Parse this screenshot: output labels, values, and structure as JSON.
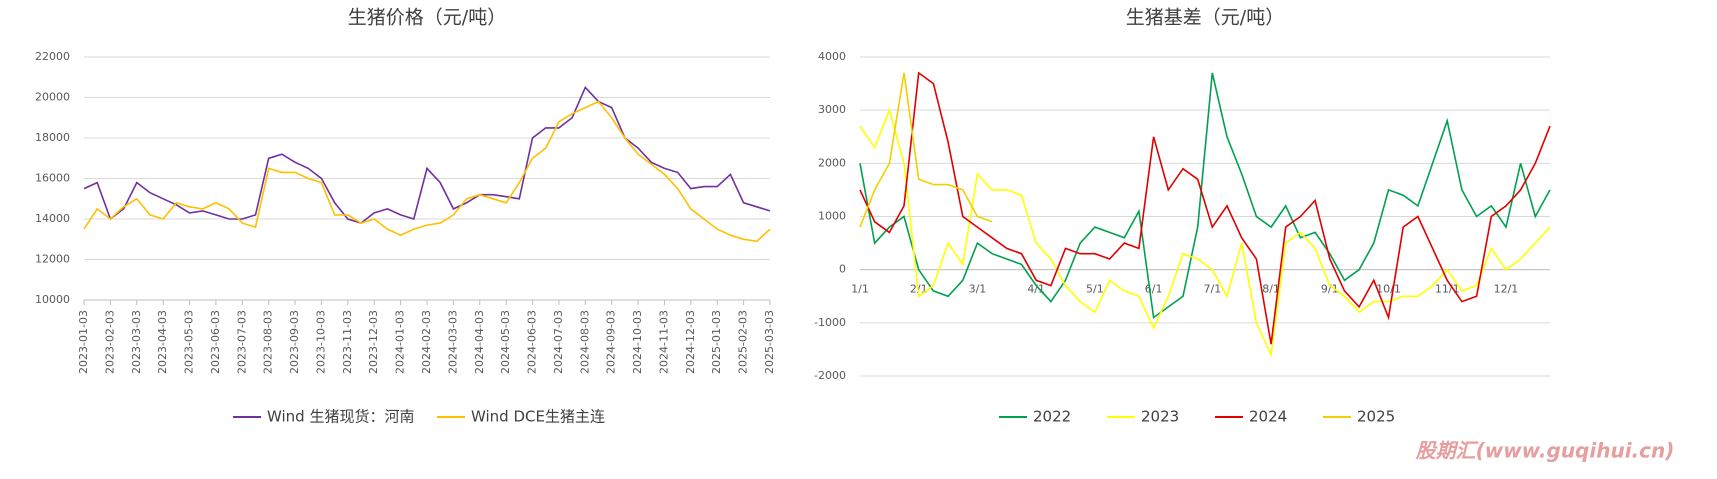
{
  "chart_data": [
    {
      "type": "line",
      "title": "生猪价格（元/吨）",
      "categories": [
        "2023-01-03",
        null,
        "2023-02-03",
        null,
        "2023-03-03",
        null,
        "2023-04-03",
        null,
        "2023-05-03",
        null,
        "2023-06-03",
        null,
        "2023-07-03",
        null,
        "2023-08-03",
        null,
        "2023-09-03",
        null,
        "2023-10-03",
        null,
        "2023-11-03",
        null,
        "2023-12-03",
        null,
        "2024-01-03",
        null,
        "2024-02-03",
        null,
        "2024-03-03",
        null,
        "2024-04-03",
        null,
        "2024-05-03",
        null,
        "2024-06-03",
        null,
        "2024-07-03",
        null,
        "2024-08-03",
        null,
        "2024-09-03",
        null,
        "2024-10-03",
        null,
        "2024-11-03",
        null,
        "2024-12-03",
        null,
        "2025-01-03",
        null,
        "2025-02-03",
        null,
        "2025-03-03"
      ],
      "series": [
        {
          "name": "Wind 生猪现货：河南",
          "color": "#7030a0",
          "values": [
            15500,
            15800,
            14000,
            14500,
            15800,
            15300,
            15000,
            14700,
            14300,
            14400,
            14200,
            14000,
            14000,
            14200,
            17000,
            17200,
            16800,
            16500,
            16000,
            14800,
            14000,
            13800,
            14300,
            14500,
            14200,
            14000,
            16500,
            15800,
            14500,
            14800,
            15200,
            15200,
            15100,
            15000,
            18000,
            18500,
            18500,
            19000,
            20500,
            19800,
            19500,
            18000,
            17500,
            16800,
            16500,
            16300,
            15500,
            15600,
            15600,
            16200,
            14800,
            14600,
            14400
          ]
        },
        {
          "name": "Wind DCE生猪主连",
          "color": "#ffc000",
          "values": [
            13500,
            14500,
            14000,
            14600,
            15000,
            14200,
            14000,
            14800,
            14600,
            14500,
            14800,
            14500,
            13800,
            13600,
            16500,
            16300,
            16300,
            16000,
            15800,
            14200,
            14200,
            13800,
            14000,
            13500,
            13200,
            13500,
            13700,
            13800,
            14200,
            15000,
            15200,
            15000,
            14800,
            15800,
            17000,
            17500,
            18800,
            19200,
            19500,
            19800,
            19000,
            18000,
            17200,
            16700,
            16200,
            15500,
            14500,
            14000,
            13500,
            13200,
            13000,
            12900,
            13500
          ]
        }
      ],
      "ylim": [
        10000,
        22000
      ],
      "yticks": [
        10000,
        12000,
        14000,
        16000,
        18000,
        20000,
        22000
      ],
      "grid": true
    },
    {
      "type": "line",
      "title": "生猪基差（元/吨）",
      "categories": [
        "1/1",
        null,
        null,
        null,
        "2/1",
        null,
        null,
        null,
        "3/1",
        null,
        null,
        null,
        "4/1",
        null,
        null,
        null,
        "5/1",
        null,
        null,
        null,
        "6/1",
        null,
        null,
        null,
        "7/1",
        null,
        null,
        null,
        "8/1",
        null,
        null,
        null,
        "9/1",
        null,
        null,
        null,
        "10/1",
        null,
        null,
        null,
        "11/1",
        null,
        null,
        null,
        "12/1",
        null,
        null,
        null
      ],
      "series": [
        {
          "name": "2022",
          "color": "#00a050",
          "values": [
            2000,
            500,
            800,
            1000,
            0,
            -400,
            -500,
            -200,
            500,
            300,
            200,
            100,
            -300,
            -600,
            -200,
            500,
            800,
            700,
            600,
            1100,
            -900,
            -700,
            -500,
            800,
            3700,
            2500,
            1800,
            1000,
            800,
            1200,
            600,
            700,
            300,
            -200,
            0,
            500,
            1500,
            1400,
            1200,
            2000,
            2800,
            1500,
            1000,
            1200,
            800,
            2000,
            1000,
            1500
          ]
        },
        {
          "name": "2023",
          "color": "#ffff00",
          "values": [
            2700,
            2300,
            3000,
            2000,
            -500,
            -300,
            500,
            100,
            1800,
            1500,
            1500,
            1400,
            500,
            200,
            -300,
            -600,
            -800,
            -200,
            -400,
            -500,
            -1100,
            -500,
            300,
            200,
            0,
            -500,
            500,
            -1000,
            -1600,
            500,
            700,
            400,
            -300,
            -500,
            -800,
            -600,
            -600,
            -500,
            -500,
            -300,
            0,
            -400,
            -300,
            400,
            0,
            200,
            500,
            800
          ]
        },
        {
          "name": "2024",
          "color": "#e00000",
          "values": [
            1500,
            900,
            700,
            1200,
            3700,
            3500,
            2400,
            1000,
            800,
            600,
            400,
            300,
            -200,
            -300,
            400,
            300,
            300,
            200,
            500,
            400,
            2500,
            1500,
            1900,
            1700,
            800,
            1200,
            600,
            200,
            -1400,
            800,
            1000,
            1300,
            200,
            -400,
            -700,
            -200,
            -900,
            800,
            1000,
            400,
            -200,
            -600,
            -500,
            1000,
            1200,
            1500,
            2000,
            2700
          ]
        },
        {
          "name": "2025",
          "color": "#f0d000",
          "values": [
            800,
            1500,
            2000,
            3700,
            1700,
            1600,
            1600,
            1500,
            1000,
            900,
            null,
            null,
            null,
            null,
            null,
            null,
            null,
            null,
            null,
            null,
            null,
            null,
            null,
            null,
            null,
            null,
            null,
            null,
            null,
            null,
            null,
            null,
            null,
            null,
            null,
            null,
            null,
            null,
            null,
            null,
            null,
            null,
            null,
            null,
            null,
            null,
            null,
            null
          ]
        }
      ],
      "ylim": [
        -2000,
        4000
      ],
      "yticks": [
        -2000,
        -1000,
        0,
        1000,
        2000,
        3000,
        4000
      ],
      "grid": true
    }
  ],
  "watermark": "股期汇(www.guqihui.cn)"
}
